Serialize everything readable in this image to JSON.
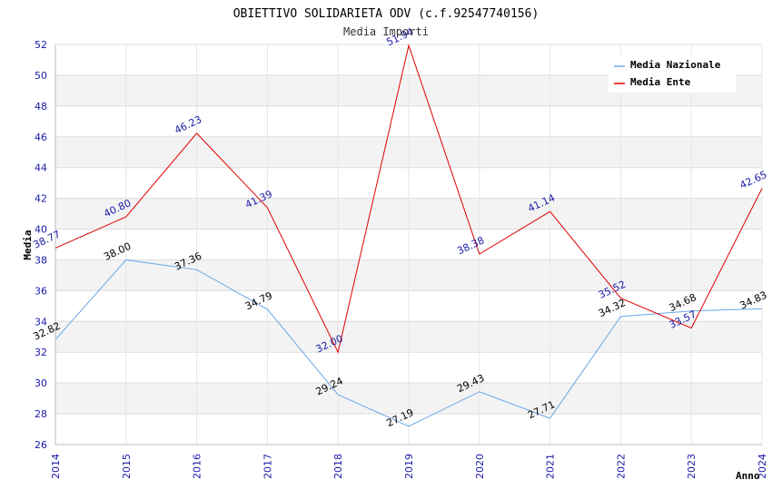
{
  "chart_data": {
    "type": "line",
    "title": "OBIETTIVO SOLIDARIETA ODV (c.f.92547740156)",
    "subtitle": "Media Importi",
    "xlabel": "Anno",
    "ylabel": "Media",
    "x": [
      "2014",
      "2015",
      "2016",
      "2017",
      "2018",
      "2019",
      "2020",
      "2021",
      "2022",
      "2023",
      "2024"
    ],
    "ylim": [
      26,
      52
    ],
    "yticks": [
      26,
      28,
      30,
      32,
      34,
      36,
      38,
      40,
      42,
      44,
      46,
      48,
      50,
      52
    ],
    "grid": true,
    "legend_position": "top-right",
    "series": [
      {
        "name": "Media Nazionale",
        "color": "#6aa7e6",
        "label_color": "#000000",
        "values": [
          32.82,
          38.0,
          37.36,
          34.79,
          29.24,
          27.19,
          29.43,
          27.71,
          34.32,
          34.68,
          34.83
        ],
        "labels": [
          "32.82",
          "38.00",
          "37.36",
          "34.79",
          "29.24",
          "27.19",
          "29.43",
          "27.71",
          "34.32",
          "34.68",
          "34.83"
        ]
      },
      {
        "name": "Media Ente",
        "color": "#e00000",
        "label_color": "#1a1aa6",
        "values": [
          38.77,
          40.8,
          46.23,
          41.39,
          32.0,
          51.94,
          38.38,
          41.14,
          35.52,
          33.57,
          42.65
        ],
        "labels": [
          "38.77",
          "40.80",
          "46.23",
          "41.39",
          "32.00",
          "51.94",
          "38.38",
          "41.14",
          "35.52",
          "33.57",
          "42.65"
        ]
      }
    ]
  }
}
